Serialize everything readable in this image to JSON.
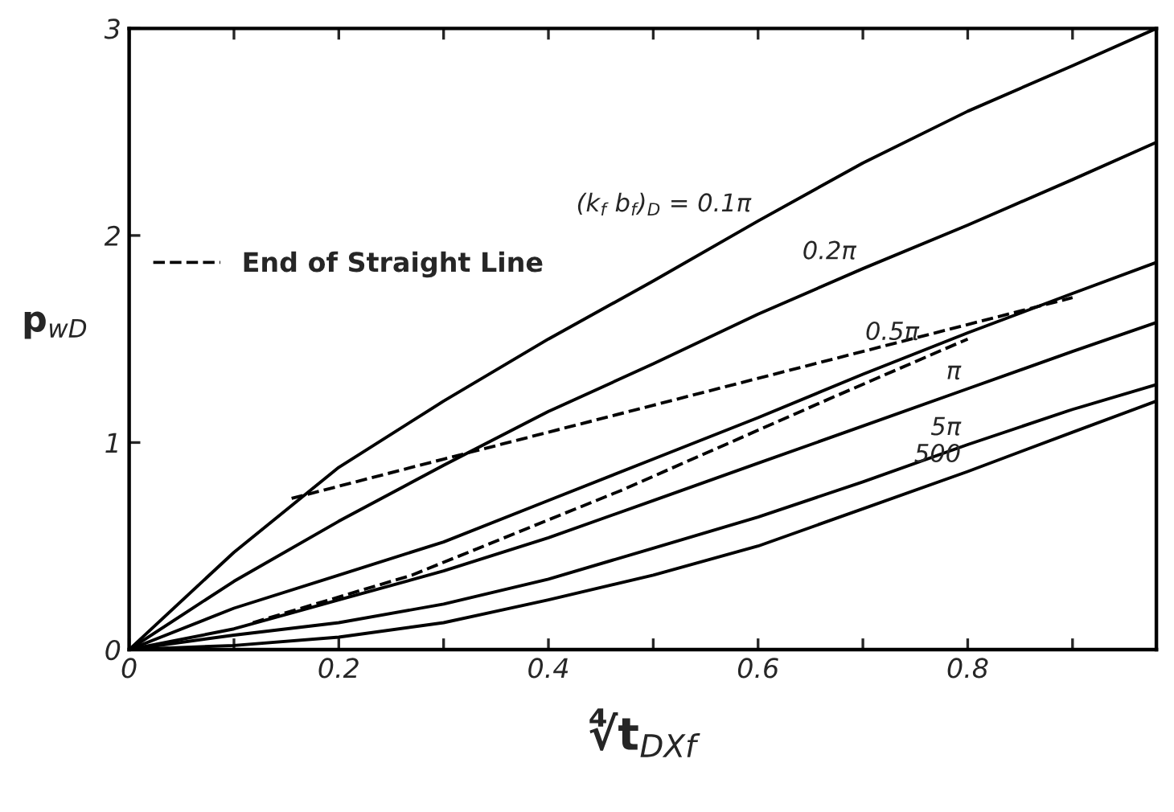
{
  "chart_data": {
    "type": "line",
    "xlabel": "∜t$_{DXf}$",
    "ylabel": "p$_{wD}$",
    "xlim": [
      0,
      0.98
    ],
    "ylim": [
      0,
      3
    ],
    "xticks": [
      0,
      {
        "value": 0.1,
        "label": null
      },
      0.2,
      {
        "value": 0.3,
        "label": null
      },
      0.4,
      {
        "value": 0.5,
        "label": null
      },
      0.6,
      {
        "value": 0.7,
        "label": null
      },
      0.8,
      {
        "value": 0.9,
        "label": null
      }
    ],
    "yticks": [
      0,
      1,
      2,
      3
    ],
    "grid": false,
    "legend": "left",
    "marker": "none",
    "series": [
      {
        "color": "#000000",
        "line_style": "solid",
        "x": [
          0,
          0.1,
          0.2,
          0.3,
          0.4,
          0.5,
          0.6,
          0.7,
          0.8,
          0.9,
          0.98
        ],
        "values": [
          0,
          0.47,
          0.88,
          1.2,
          1.5,
          1.78,
          2.07,
          2.35,
          2.6,
          2.82,
          3.0
        ]
      },
      {
        "color": "#000000",
        "line_style": "solid",
        "x": [
          0,
          0.1,
          0.2,
          0.3,
          0.4,
          0.5,
          0.6,
          0.7,
          0.8,
          0.9,
          0.98
        ],
        "values": [
          0,
          0.33,
          0.62,
          0.89,
          1.15,
          1.38,
          1.62,
          1.84,
          2.05,
          2.27,
          2.45
        ]
      },
      {
        "color": "#000000",
        "line_style": "solid",
        "x": [
          0,
          0.1,
          0.2,
          0.3,
          0.4,
          0.5,
          0.6,
          0.7,
          0.8,
          0.9,
          0.98
        ],
        "values": [
          0,
          0.2,
          0.36,
          0.52,
          0.72,
          0.92,
          1.12,
          1.33,
          1.53,
          1.72,
          1.87
        ]
      },
      {
        "color": "#000000",
        "line_style": "solid",
        "x": [
          0,
          0.1,
          0.2,
          0.3,
          0.4,
          0.5,
          0.6,
          0.7,
          0.8,
          0.9,
          0.98
        ],
        "values": [
          0,
          0.1,
          0.24,
          0.38,
          0.54,
          0.72,
          0.9,
          1.08,
          1.26,
          1.44,
          1.58
        ]
      },
      {
        "color": "#000000",
        "line_style": "solid",
        "x": [
          0,
          0.1,
          0.2,
          0.3,
          0.4,
          0.5,
          0.6,
          0.7,
          0.8,
          0.9,
          0.98
        ],
        "values": [
          0,
          0.07,
          0.13,
          0.22,
          0.34,
          0.49,
          0.64,
          0.81,
          0.99,
          1.16,
          1.28
        ]
      },
      {
        "color": "#000000",
        "line_style": "solid",
        "x": [
          0,
          0.1,
          0.2,
          0.3,
          0.4,
          0.5,
          0.6,
          0.7,
          0.8,
          0.9,
          0.98
        ],
        "values": [
          0,
          0.02,
          0.06,
          0.13,
          0.24,
          0.36,
          0.5,
          0.68,
          0.86,
          1.05,
          1.2
        ]
      },
      {
        "name": "End of Straight Line",
        "color": "#000000",
        "line_style": "dashed",
        "x": [
          0.155,
          0.3,
          0.5,
          0.7,
          0.9
        ],
        "values": [
          0.73,
          0.92,
          1.18,
          1.44,
          1.7
        ]
      },
      {
        "color": "#000000",
        "line_style": "dashed",
        "x": [
          0.118,
          0.27,
          0.47,
          0.672,
          0.8
        ],
        "values": [
          0.13,
          0.36,
          0.77,
          1.22,
          1.5
        ]
      }
    ],
    "annotations": [
      {
        "text": "(k$_{f}$ b$_{f}$)$_{D}$ = 0.1π",
        "x": 0.6,
        "y": 2.07
      },
      {
        "text": "0.2π",
        "x": 0.7,
        "y": 1.84
      },
      {
        "text": "0.5π",
        "x": 0.76,
        "y": 1.45
      },
      {
        "text": "π",
        "x": 0.8,
        "y": 1.26
      },
      {
        "text": "5π",
        "x": 0.8,
        "y": 0.99
      },
      {
        "text": "500",
        "x": 0.8,
        "y": 0.86
      }
    ]
  }
}
